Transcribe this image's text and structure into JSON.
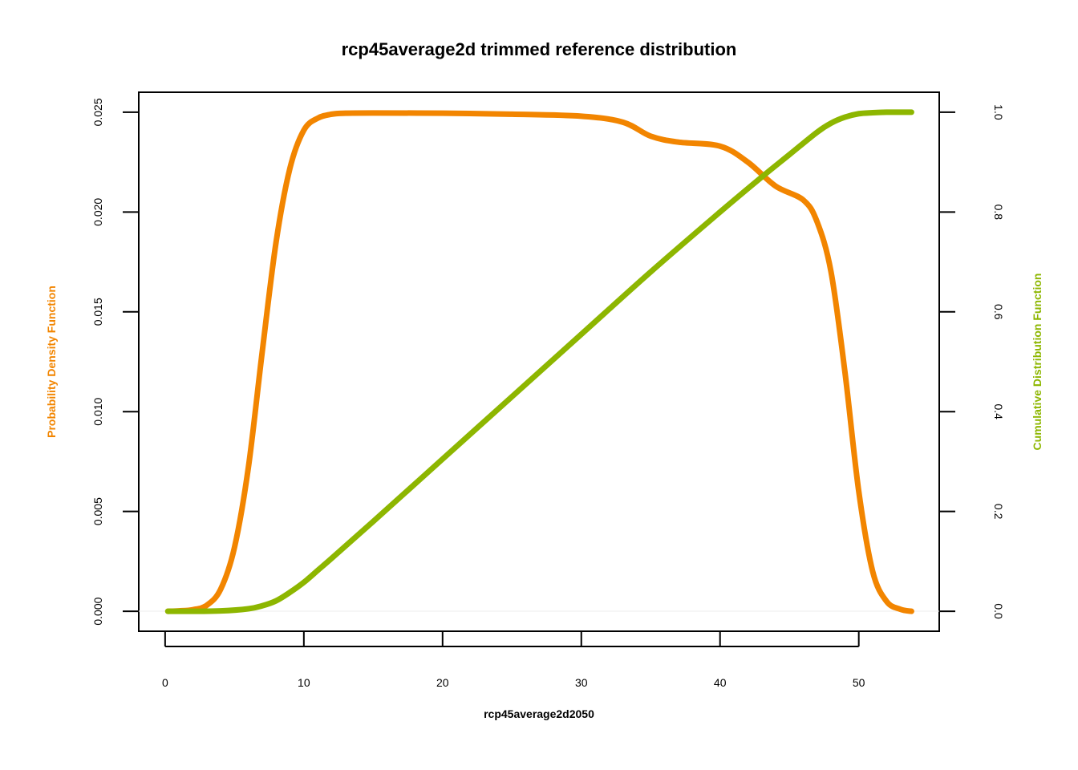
{
  "chart_data": {
    "type": "line",
    "title": "rcp45average2d trimmed reference distribution",
    "xlabel": "rcp45average2d2050",
    "ylabel_left": "Probability Density Function",
    "ylabel_right": "Cumulative Distribution Function",
    "xlim": [
      -1.9,
      55.8
    ],
    "ylim_left": [
      -0.001,
      0.026
    ],
    "ylim_right": [
      -0.04,
      1.04
    ],
    "x_ticks": [
      0,
      10,
      20,
      30,
      40,
      50
    ],
    "y_left_ticks": [
      "0.000",
      "0.005",
      "0.010",
      "0.015",
      "0.020",
      "0.025"
    ],
    "y_right_ticks": [
      "0.0",
      "0.2",
      "0.4",
      "0.6",
      "0.8",
      "1.0"
    ],
    "grid": false,
    "series": [
      {
        "name": "Probability Density Function",
        "axis": "left",
        "color": "#F28500",
        "x": [
          0.2,
          1,
          2,
          3,
          4,
          5,
          6,
          7,
          8,
          9,
          10,
          11,
          12,
          13,
          15,
          20,
          25,
          30,
          33,
          35,
          37,
          40,
          42,
          44,
          46,
          47,
          48,
          49,
          50,
          51,
          52,
          53,
          53.8
        ],
        "y": [
          0.0,
          2e-05,
          8e-05,
          0.0003,
          0.0011,
          0.0032,
          0.0072,
          0.013,
          0.0185,
          0.0222,
          0.0241,
          0.0247,
          0.0249,
          0.02495,
          0.02496,
          0.02495,
          0.0249,
          0.0248,
          0.0245,
          0.0238,
          0.0235,
          0.0233,
          0.0225,
          0.0213,
          0.0206,
          0.0195,
          0.017,
          0.012,
          0.006,
          0.002,
          0.0005,
          0.0001,
          0.0
        ]
      },
      {
        "name": "Cumulative Distribution Function",
        "axis": "right",
        "color": "#8DB600",
        "x": [
          0.2,
          2,
          4,
          6,
          7,
          8,
          9,
          10,
          11,
          12,
          15,
          20,
          25,
          30,
          35,
          40,
          43,
          45,
          47,
          48,
          49,
          50,
          51,
          52,
          53,
          53.8
        ],
        "y": [
          0.0,
          0.0,
          0.0007,
          0.005,
          0.011,
          0.021,
          0.038,
          0.058,
          0.082,
          0.106,
          0.18,
          0.305,
          0.43,
          0.555,
          0.68,
          0.8,
          0.87,
          0.915,
          0.96,
          0.978,
          0.99,
          0.997,
          0.999,
          1.0,
          1.0,
          1.0
        ]
      }
    ]
  }
}
